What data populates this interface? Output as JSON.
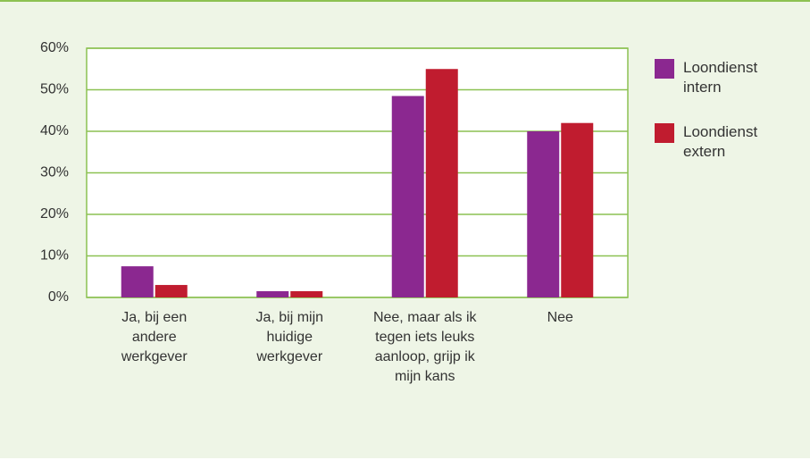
{
  "chart_data": {
    "type": "bar",
    "categories": [
      "Ja, bij een andere werkgever",
      "Ja, bij mijn huidige werkgever",
      "Nee, maar als ik tegen iets leuks aanloop, grijp ik mijn kans",
      "Nee"
    ],
    "series": [
      {
        "name": "Loondienst intern",
        "color": "#8b2890",
        "values": [
          7.5,
          1.5,
          48.5,
          40
        ]
      },
      {
        "name": "Loondienst extern",
        "color": "#c01c2f",
        "values": [
          3,
          1.5,
          55,
          42
        ]
      }
    ],
    "ylim": [
      0,
      60
    ],
    "yticks": [
      {
        "value": 0,
        "label": "0%"
      },
      {
        "value": 10,
        "label": "10%"
      },
      {
        "value": 20,
        "label": "20%"
      },
      {
        "value": 30,
        "label": "30%"
      },
      {
        "value": 40,
        "label": "40%"
      },
      {
        "value": 50,
        "label": "50%"
      },
      {
        "value": 60,
        "label": "60%"
      }
    ],
    "grid": true,
    "grid_color": "#8cc152",
    "legend": "right"
  }
}
